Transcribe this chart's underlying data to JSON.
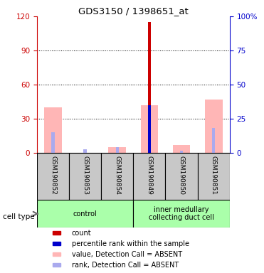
{
  "title": "GDS3150 / 1398651_at",
  "samples": [
    "GSM190852",
    "GSM190853",
    "GSM190854",
    "GSM190849",
    "GSM190850",
    "GSM190851"
  ],
  "red_bars": [
    0,
    0,
    0,
    115,
    0,
    0
  ],
  "pink_bars": [
    40,
    0,
    5,
    42,
    7,
    47
  ],
  "lblue_bars": [
    18,
    3,
    5,
    42,
    2,
    22
  ],
  "dblue_bars": [
    0,
    0,
    0,
    42,
    0,
    0
  ],
  "ylim_left": [
    0,
    120
  ],
  "ylim_right": [
    0,
    100
  ],
  "yticks_left": [
    0,
    30,
    60,
    90,
    120
  ],
  "ytick_labels_left": [
    "0",
    "30",
    "60",
    "90",
    "120"
  ],
  "yticks_right": [
    0,
    25,
    50,
    75,
    100
  ],
  "ytick_labels_right": [
    "0",
    "25",
    "50",
    "75",
    "100%"
  ],
  "left_axis_color": "#cc0000",
  "right_axis_color": "#0000cc",
  "red_color": "#cc0000",
  "pink_color": "#ffb6b6",
  "dblue_color": "#0000cc",
  "lblue_color": "#aaaaee",
  "sample_bg_color": "#c8c8c8",
  "group_colors": [
    "#aaffaa",
    "#aaffaa"
  ],
  "grid_yticks": [
    30,
    60,
    90
  ],
  "group_ranges": [
    [
      0,
      2,
      "control"
    ],
    [
      3,
      5,
      "inner medullary\ncollecting duct cell"
    ]
  ],
  "cell_type_label": "cell type",
  "legend_items": [
    {
      "label": "count",
      "color": "#cc0000"
    },
    {
      "label": "percentile rank within the sample",
      "color": "#0000cc"
    },
    {
      "label": "value, Detection Call = ABSENT",
      "color": "#ffb6b6"
    },
    {
      "label": "rank, Detection Call = ABSENT",
      "color": "#aaaaee"
    }
  ]
}
